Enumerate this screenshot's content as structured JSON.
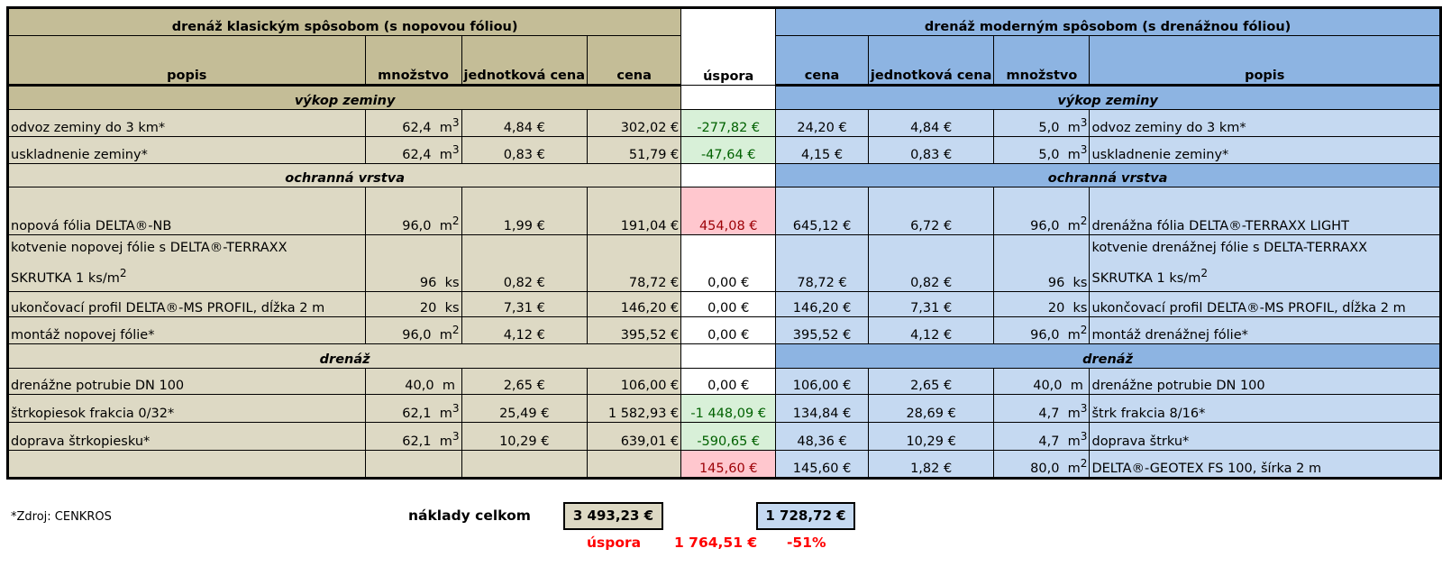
{
  "header": {
    "left_title": "drenáž klasickým spôsobom (s nopovou fóliou)",
    "right_title": "drenáž moderným spôsobom (s drenážnou fóliou)",
    "uspora": "úspora",
    "popis": "popis",
    "mnozstvo": "množstvo",
    "jednotkova_cena": "jednotková cena",
    "cena": "cena"
  },
  "sections": {
    "vykop": "výkop zeminy",
    "ochranna": "ochranná vrstva",
    "drenaz": "drenáž"
  },
  "rows": [
    {
      "l_desc": "odvoz zeminy do 3 km*",
      "l_qty": "62,4",
      "l_unit": "m",
      "l_sup": "3",
      "l_unitprice": "4,84 €",
      "l_price": "302,02 €",
      "saving": "-277,82 €",
      "r_price": "24,20 €",
      "r_unitprice": "4,84 €",
      "r_qty": "5,0",
      "r_unit": "m",
      "r_sup": "3",
      "r_desc": "odvoz zeminy do 3 km*"
    },
    {
      "l_desc": "uskladnenie zeminy*",
      "l_qty": "62,4",
      "l_unit": "m",
      "l_sup": "3",
      "l_unitprice": "0,83 €",
      "l_price": "51,79 €",
      "saving": "-47,64 €",
      "r_price": "4,15 €",
      "r_unitprice": "0,83 €",
      "r_qty": "5,0",
      "r_unit": "m",
      "r_sup": "3",
      "r_desc": "uskladnenie zeminy*"
    },
    {
      "l_desc": "nopová fólia DELTA®-NB",
      "l_qty": "96,0",
      "l_unit": "m",
      "l_sup": "2",
      "l_unitprice": "1,99 €",
      "l_price": "191,04 €",
      "saving": "454,08 €",
      "r_price": "645,12 €",
      "r_unitprice": "6,72 €",
      "r_qty": "96,0",
      "r_unit": "m",
      "r_sup": "2",
      "r_desc": "drenážna fólia DELTA®-TERRAXX LIGHT"
    },
    {
      "l_desc1": "kotvenie nopovej fólie s DELTA®-TERRAXX",
      "l_desc2": "SKRUTKA 1 ks/m",
      "l_desc_sup": "2",
      "l_qty": "96",
      "l_unit": "ks",
      "l_unitprice": "0,82 €",
      "l_price": "78,72 €",
      "saving": "0,00 €",
      "r_price": "78,72 €",
      "r_unitprice": "0,82 €",
      "r_qty": "96",
      "r_unit": "ks",
      "r_desc1": "kotvenie drenážnej fólie s  DELTA-TERRAXX",
      "r_desc2": "SKRUTKA 1 ks/m",
      "r_desc_sup": "2"
    },
    {
      "l_desc": "ukončovací profil DELTA®-MS PROFIL, dĺžka 2 m",
      "l_qty": "20",
      "l_unit": "ks",
      "l_unitprice": "7,31 €",
      "l_price": "146,20 €",
      "saving": "0,00 €",
      "r_price": "146,20 €",
      "r_unitprice": "7,31 €",
      "r_qty": "20",
      "r_unit": "ks",
      "r_desc": "ukončovací profil DELTA®-MS PROFIL, dĺžka 2 m"
    },
    {
      "l_desc": "montáž nopovej fólie*",
      "l_qty": "96,0",
      "l_unit": "m",
      "l_sup": "2",
      "l_unitprice": "4,12 €",
      "l_price": "395,52 €",
      "saving": "0,00 €",
      "r_price": "395,52 €",
      "r_unitprice": "4,12 €",
      "r_qty": "96,0",
      "r_unit": "m",
      "r_sup": "2",
      "r_desc": "montáž drenážnej fólie*"
    },
    {
      "l_desc": "drenážne potrubie DN 100",
      "l_qty": "40,0",
      "l_unit": "m",
      "l_unitprice": "2,65 €",
      "l_price": "106,00 €",
      "saving": "0,00 €",
      "r_price": "106,00 €",
      "r_unitprice": "2,65 €",
      "r_qty": "40,0",
      "r_unit": "m",
      "r_desc": "drenážne potrubie DN 100"
    },
    {
      "l_desc": "štrkopiesok frakcia 0/32*",
      "l_qty": "62,1",
      "l_unit": "m",
      "l_sup": "3",
      "l_unitprice": "25,49 €",
      "l_price": "1 582,93 €",
      "saving": "-1 448,09 €",
      "r_price": "134,84 €",
      "r_unitprice": "28,69 €",
      "r_qty": "4,7",
      "r_unit": "m",
      "r_sup": "3",
      "r_desc": "štrk frakcia 8/16*"
    },
    {
      "l_desc": "doprava štrkopiesku*",
      "l_qty": "62,1",
      "l_unit": "m",
      "l_sup": "3",
      "l_unitprice": "10,29 €",
      "l_price": "639,01 €",
      "saving": "-590,65 €",
      "r_price": "48,36 €",
      "r_unitprice": "10,29 €",
      "r_qty": "4,7",
      "r_unit": "m",
      "r_sup": "3",
      "r_desc": "doprava štrku*"
    },
    {
      "saving": "145,60 €",
      "r_price": "145,60 €",
      "r_unitprice": "1,82 €",
      "r_qty": "80,0",
      "r_unit": "m",
      "r_sup": "2",
      "r_desc": "DELTA®-GEOTEX FS 100, šírka 2 m"
    }
  ],
  "footer": {
    "source": "*Zdroj: CENKROS",
    "total_label": "náklady celkom",
    "total_left": "3 493,23 €",
    "total_right": "1 728,72 €",
    "saving_label": "úspora",
    "saving_value": "1 764,51 €",
    "saving_percent": "-51%"
  },
  "colors": {
    "left_header": "#c4bd97",
    "left_body": "#ddd9c4",
    "right_header": "#8db4e2",
    "right_body": "#c5d9f1",
    "negative_saving_bg": "#d8f0d8",
    "positive_saving_bg": "#ffc7ce",
    "footer_red": "#ff0000"
  }
}
